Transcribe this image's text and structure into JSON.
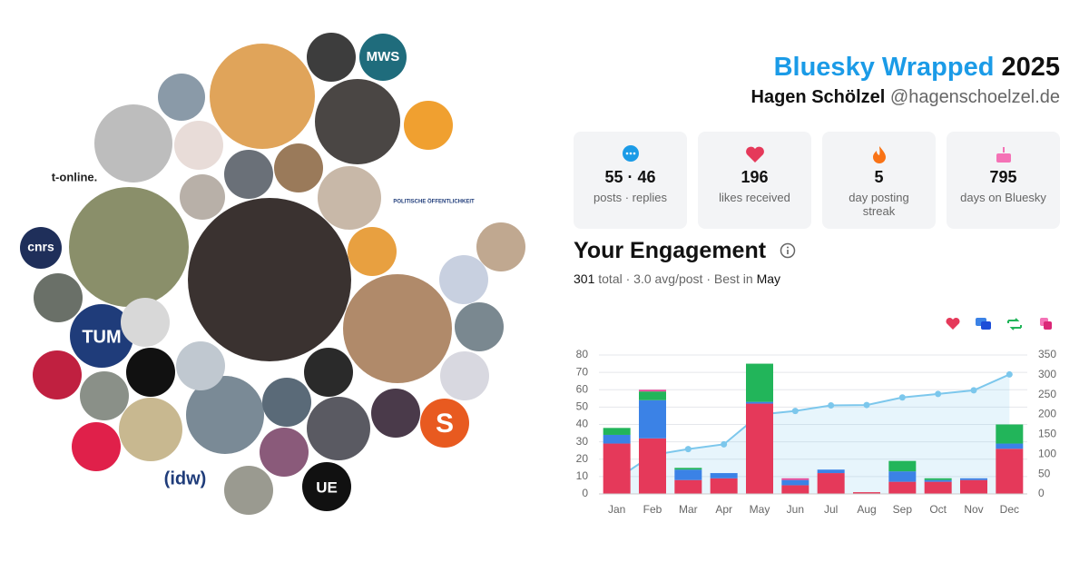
{
  "header": {
    "title": "Bluesky Wrapped",
    "year": "2025",
    "name": "Hagen Schölzel",
    "handle": "@hagenschoelzel.de"
  },
  "logos": [
    "MWS",
    "t-online.",
    "cnrs",
    "TUM",
    "(idw)",
    "UE",
    "S",
    "POLITISCHE ÖFFENTLICHKEIT"
  ],
  "stats": [
    {
      "value": "55 · 46",
      "label": "posts · replies"
    },
    {
      "value": "196",
      "label": "likes received"
    },
    {
      "value": "5",
      "label": "day posting streak"
    },
    {
      "value": "795",
      "label": "days on Bluesky"
    }
  ],
  "engagement": {
    "title": "Your Engagement",
    "total": "301",
    "summary": "total · 3.0 avg/post · Best in",
    "best": "May"
  },
  "chart_data": {
    "type": "bar",
    "stacked": true,
    "categories": [
      "Jan",
      "Feb",
      "Mar",
      "Apr",
      "May",
      "Jun",
      "Jul",
      "Aug",
      "Sep",
      "Oct",
      "Nov",
      "Dec"
    ],
    "series": [
      {
        "color": "#e5395a",
        "values": [
          29,
          32,
          8,
          9,
          52,
          5,
          12,
          1,
          7,
          7,
          8,
          26
        ]
      },
      {
        "color": "#3b82e6",
        "values": [
          5,
          22,
          6,
          3,
          1,
          3,
          2,
          0,
          6,
          1,
          1,
          3
        ]
      },
      {
        "color": "#22b55a",
        "values": [
          4,
          5,
          1,
          0,
          22,
          0,
          0,
          0,
          6,
          1,
          0,
          11
        ]
      },
      {
        "color": "#e84a9a",
        "values": [
          0,
          1,
          0,
          0,
          0,
          1,
          0,
          0,
          0,
          0,
          0,
          0
        ]
      },
      {
        "type": "line",
        "axis": "y2",
        "color": "#7cc7ec",
        "values": [
          38,
          98,
          113,
          125,
          200,
          209,
          223,
          224,
          243,
          252,
          261,
          301
        ]
      }
    ],
    "ylim": [
      0,
      80
    ],
    "yticks": [
      0,
      10,
      20,
      30,
      40,
      50,
      60,
      70,
      80
    ],
    "y2lim": [
      0,
      350
    ],
    "y2ticks": [
      0,
      50,
      100,
      150,
      200,
      250,
      300,
      350
    ],
    "grid": true
  }
}
